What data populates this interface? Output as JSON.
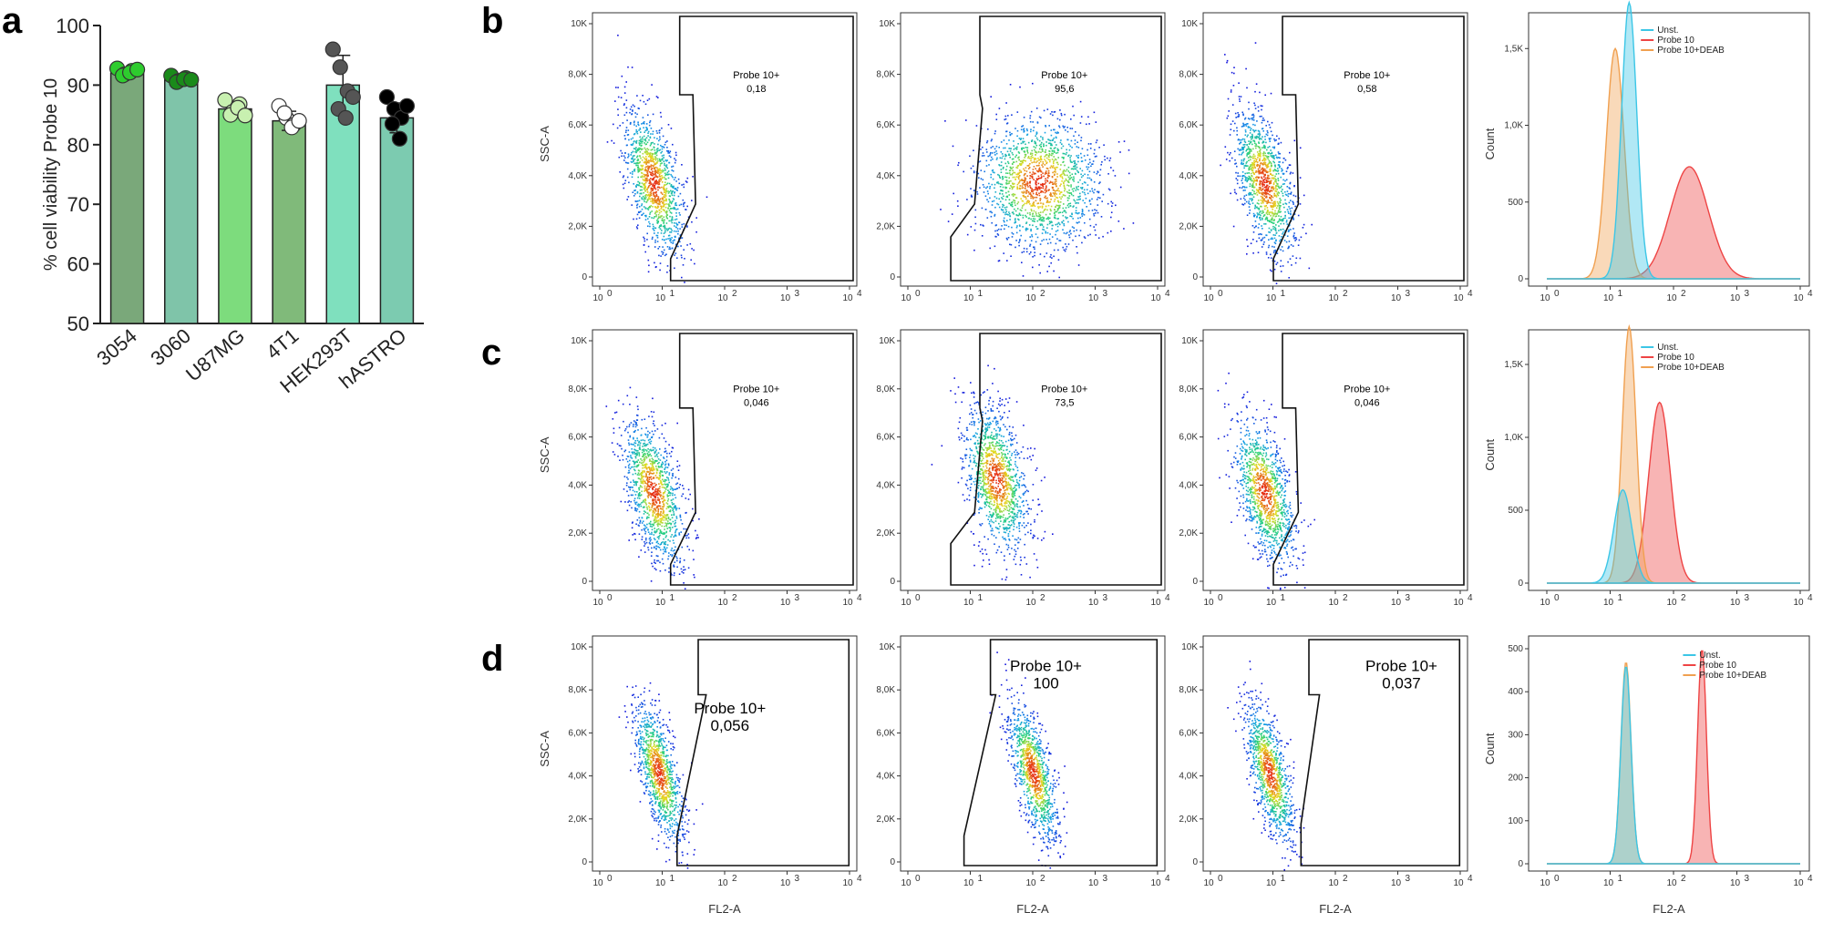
{
  "chart_data": [
    {
      "panel": "a",
      "type": "bar",
      "ylabel": "% cell viability Probe 10",
      "ylim": [
        50,
        100
      ],
      "yticks": [
        "50",
        "60",
        "70",
        "80",
        "90",
        "100"
      ],
      "categories": [
        "3054",
        "3060",
        "U87MG",
        "4T1",
        "HEK293T",
        "hASTRO"
      ],
      "values": [
        92,
        91,
        86,
        84,
        90,
        84.5
      ],
      "errors": [
        0.5,
        0.6,
        1.2,
        1.6,
        5,
        2.5
      ],
      "bar_colors": [
        "#7aa87a",
        "#7fc4a9",
        "#7ddc7d",
        "#80ba7a",
        "#7fe0be",
        "#7ccbb0"
      ],
      "points": [
        {
          "color": "#2ecc2e",
          "values": [
            92.8,
            91.8,
            92.4,
            91.6,
            92.1,
            92.6
          ]
        },
        {
          "color": "#1a8a1a",
          "values": [
            91.6,
            90.7,
            91.2,
            90.5,
            91.0,
            90.9
          ]
        },
        {
          "color": "#c8f0b0",
          "values": [
            87.5,
            85.5,
            86.8,
            85.0,
            86.2,
            84.9
          ]
        },
        {
          "color": "#ffffff",
          "values": [
            86.5,
            84.5,
            83.3,
            85.3,
            82.9,
            84.0
          ]
        },
        {
          "color": "#555555",
          "values": [
            96,
            93,
            89,
            86,
            84.5,
            88
          ]
        },
        {
          "color": "#000000",
          "values": [
            88,
            86,
            84.5,
            83.5,
            81,
            86.5
          ]
        }
      ]
    },
    {
      "panel": "b",
      "type": "scatter",
      "xlabel": "",
      "ylabel": "SSC-A",
      "plots": [
        {
          "gate_label": "Probe 10+",
          "gate_value": "0,18"
        },
        {
          "gate_label": "Probe 10+",
          "gate_value": "95,6"
        },
        {
          "gate_label": "Probe 10+",
          "gate_value": "0,58"
        }
      ],
      "histogram": {
        "ylabel": "Count",
        "yticks": [
          "0",
          "500",
          "1,0K",
          "1,5K"
        ],
        "legend": [
          "Unst.",
          "Probe 10",
          "Probe 10+DEAB"
        ]
      }
    },
    {
      "panel": "c",
      "type": "scatter",
      "xlabel": "",
      "ylabel": "SSC-A",
      "plots": [
        {
          "gate_label": "Probe 10+",
          "gate_value": "0,046"
        },
        {
          "gate_label": "Probe 10+",
          "gate_value": "73,5"
        },
        {
          "gate_label": "Probe 10+",
          "gate_value": "0,046"
        }
      ],
      "histogram": {
        "ylabel": "Count",
        "yticks": [
          "0",
          "500",
          "1,0K",
          "1,5K"
        ],
        "legend": [
          "Unst.",
          "Probe 10",
          "Probe 10+DEAB"
        ]
      }
    },
    {
      "panel": "d",
      "type": "scatter",
      "xlabel": "FL2-A",
      "ylabel": "SSC-A",
      "plots": [
        {
          "gate_label": "Probe 10+",
          "gate_value": "0,056"
        },
        {
          "gate_label": "Probe 10+",
          "gate_value": "100"
        },
        {
          "gate_label": "Probe 10+",
          "gate_value": "0,037"
        }
      ],
      "histogram": {
        "ylabel": "Count",
        "yticks": [
          "0",
          "100",
          "200",
          "300",
          "400",
          "500"
        ],
        "legend": [
          "Unst.",
          "Probe 10",
          "Probe 10+DEAB"
        ],
        "xlabel": "FL2-A"
      }
    }
  ],
  "scatter_yticks": [
    "0",
    "2,0K",
    "4,0K",
    "6,0K",
    "8,0K",
    "10K"
  ],
  "scatter_xticks": [
    "10",
    "10",
    "10",
    "10",
    "10"
  ],
  "scatter_xtick_exp": [
    "0",
    "1",
    "2",
    "3",
    "4"
  ],
  "hist_colors": {
    "unst": "#3cc6e6",
    "probe": "#ee4444",
    "deab": "#f0a050"
  }
}
